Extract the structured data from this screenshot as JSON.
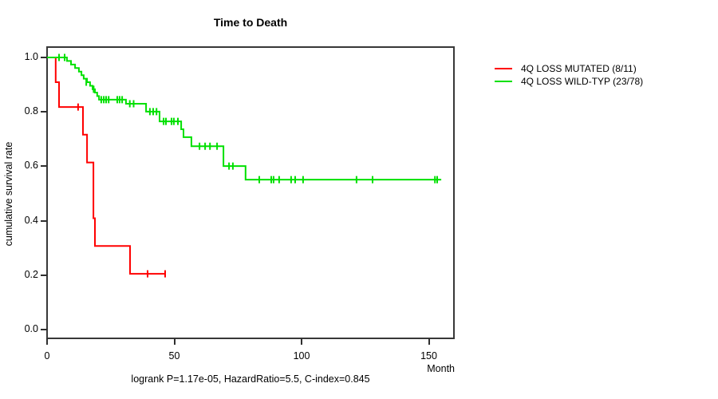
{
  "chart_data": {
    "type": "line",
    "subtype": "kaplan-meier-step",
    "title": "Time to Death",
    "xlabel": "Month",
    "ylabel": "cumulative survival rate",
    "annotation": "logrank P=1.17e-05, HazardRatio=5.5, C-index=0.845",
    "xlim": [
      0,
      160
    ],
    "ylim": [
      0,
      1.04
    ],
    "grid": false,
    "legend_position": "right-outside",
    "x_ticks": [
      0,
      50,
      100,
      150
    ],
    "y_ticks": [
      "0.0",
      "0.2",
      "0.4",
      "0.6",
      "0.8",
      "1.0"
    ],
    "series": [
      {
        "name": "4Q LOSS MUTATED (8/11)",
        "color": "#ff0000",
        "steps": [
          [
            0,
            1.0
          ],
          [
            3.4,
            0.909
          ],
          [
            4.7,
            0.818
          ],
          [
            14.1,
            0.716
          ],
          [
            15.7,
            0.614
          ],
          [
            18.2,
            0.409
          ],
          [
            18.8,
            0.307
          ],
          [
            32.6,
            0.205
          ]
        ],
        "end": 46.7,
        "censors": [
          [
            12.2,
            0.818
          ],
          [
            39.5,
            0.205
          ],
          [
            46.4,
            0.205
          ]
        ]
      },
      {
        "name": "4Q LOSS WILD-TYP (23/78)",
        "color": "#00e000",
        "steps": [
          [
            0,
            1.0
          ],
          [
            7.8,
            0.987
          ],
          [
            9.4,
            0.974
          ],
          [
            11.0,
            0.961
          ],
          [
            12.5,
            0.948
          ],
          [
            13.5,
            0.935
          ],
          [
            14.4,
            0.922
          ],
          [
            15.7,
            0.909
          ],
          [
            16.9,
            0.896
          ],
          [
            17.9,
            0.883
          ],
          [
            18.8,
            0.871
          ],
          [
            19.7,
            0.858
          ],
          [
            20.4,
            0.845
          ],
          [
            31.0,
            0.83
          ],
          [
            38.9,
            0.801
          ],
          [
            44.2,
            0.765
          ],
          [
            52.7,
            0.736
          ],
          [
            53.6,
            0.707
          ],
          [
            56.7,
            0.674
          ],
          [
            69.3,
            0.601
          ],
          [
            78.0,
            0.551
          ]
        ],
        "end": 154.9,
        "censors": [
          [
            4.7,
            1.0
          ],
          [
            6.9,
            1.0
          ],
          [
            15.4,
            0.909
          ],
          [
            18.3,
            0.883
          ],
          [
            21.3,
            0.845
          ],
          [
            22.3,
            0.845
          ],
          [
            23.2,
            0.845
          ],
          [
            24.2,
            0.845
          ],
          [
            27.6,
            0.845
          ],
          [
            28.5,
            0.845
          ],
          [
            29.5,
            0.845
          ],
          [
            32.5,
            0.83
          ],
          [
            34.0,
            0.83
          ],
          [
            40.4,
            0.801
          ],
          [
            41.7,
            0.801
          ],
          [
            43.0,
            0.801
          ],
          [
            45.8,
            0.765
          ],
          [
            46.7,
            0.765
          ],
          [
            48.9,
            0.765
          ],
          [
            49.8,
            0.765
          ],
          [
            51.4,
            0.765
          ],
          [
            59.9,
            0.674
          ],
          [
            62.1,
            0.674
          ],
          [
            64.0,
            0.674
          ],
          [
            66.8,
            0.674
          ],
          [
            71.5,
            0.601
          ],
          [
            73.0,
            0.601
          ],
          [
            83.4,
            0.551
          ],
          [
            88.1,
            0.551
          ],
          [
            89.0,
            0.551
          ],
          [
            91.2,
            0.551
          ],
          [
            95.9,
            0.551
          ],
          [
            97.5,
            0.551
          ],
          [
            100.6,
            0.551
          ],
          [
            121.6,
            0.551
          ],
          [
            127.9,
            0.551
          ],
          [
            152.4,
            0.551
          ],
          [
            153.3,
            0.551
          ]
        ]
      }
    ]
  }
}
